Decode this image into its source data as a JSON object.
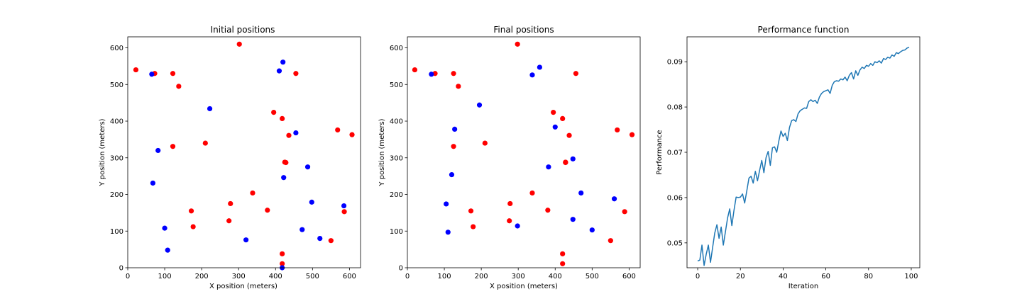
{
  "chart_data": [
    {
      "type": "scatter",
      "title": "Initial positions",
      "xlabel": "X position (meters)",
      "ylabel": "Y position (meters)",
      "xlim": [
        0,
        630
      ],
      "ylim": [
        0,
        630
      ],
      "xticks": [
        0,
        100,
        200,
        300,
        400,
        500,
        600
      ],
      "yticks": [
        0,
        100,
        200,
        300,
        400,
        500,
        600
      ],
      "grid": false,
      "series": [
        {
          "color": "#ff0000",
          "x": [
            22,
            73,
            122,
            138,
            302,
            395,
            418,
            425,
            436,
            455,
            568,
            607,
            122,
            210,
            428,
            338,
            278,
            172,
            378,
            586,
            177,
            274,
            418,
            418,
            550
          ],
          "y": [
            540,
            530,
            530,
            495,
            610,
            424,
            407,
            288,
            361,
            530,
            376,
            363,
            331,
            340,
            287,
            204,
            175,
            155,
            157,
            153,
            112,
            128,
            38,
            11,
            74
          ]
        },
        {
          "color": "#0000ff",
          "x": [
            65,
            420,
            410,
            222,
            455,
            82,
            487,
            422,
            68,
            498,
            585,
            100,
            472,
            520,
            108,
            320,
            418
          ],
          "y": [
            528,
            561,
            537,
            434,
            368,
            320,
            275,
            246,
            231,
            179,
            169,
            108,
            104,
            80,
            48,
            76,
            0
          ]
        }
      ]
    },
    {
      "type": "scatter",
      "title": "Final positions",
      "xlabel": "X position (meters)",
      "ylabel": "Y position (meters)",
      "xlim": [
        0,
        630
      ],
      "ylim": [
        0,
        630
      ],
      "xticks": [
        0,
        100,
        200,
        300,
        400,
        500,
        600
      ],
      "yticks": [
        0,
        100,
        200,
        300,
        400,
        500,
        600
      ],
      "grid": false,
      "series": [
        {
          "color": "#ff0000",
          "x": [
            20,
            75,
            125,
            138,
            298,
            395,
            420,
            428,
            438,
            456,
            568,
            608,
            125,
            210,
            428,
            338,
            278,
            172,
            380,
            588,
            178,
            276,
            420,
            420,
            550
          ],
          "y": [
            540,
            530,
            530,
            495,
            610,
            424,
            407,
            288,
            361,
            530,
            376,
            363,
            331,
            340,
            287,
            204,
            175,
            155,
            157,
            153,
            112,
            128,
            38,
            11,
            74
          ]
        },
        {
          "color": "#0000ff",
          "x": [
            65,
            358,
            338,
            195,
            400,
            128,
            382,
            448,
            120,
            470,
            560,
            105,
            448,
            500,
            110,
            298
          ],
          "y": [
            528,
            547,
            526,
            444,
            384,
            378,
            275,
            297,
            254,
            204,
            188,
            174,
            132,
            103,
            97,
            114
          ]
        }
      ]
    },
    {
      "type": "line",
      "title": "Performance function",
      "xlabel": "Iteration",
      "ylabel": "Performance",
      "xlim": [
        -5,
        104
      ],
      "ylim": [
        0.0445,
        0.0955
      ],
      "xticks": [
        0,
        20,
        40,
        60,
        80,
        100
      ],
      "yticks": [
        0.05,
        0.06,
        0.07,
        0.08,
        0.09
      ],
      "grid": false,
      "series": [
        {
          "color": "#1f77b4",
          "x": [
            0,
            1,
            2,
            3,
            4,
            5,
            6,
            7,
            8,
            9,
            10,
            11,
            12,
            13,
            14,
            15,
            16,
            17,
            18,
            19,
            20,
            21,
            22,
            23,
            24,
            25,
            26,
            27,
            28,
            29,
            30,
            31,
            32,
            33,
            34,
            35,
            36,
            37,
            38,
            39,
            40,
            41,
            42,
            43,
            44,
            45,
            46,
            47,
            48,
            49,
            50,
            51,
            52,
            53,
            54,
            55,
            56,
            57,
            58,
            59,
            60,
            61,
            62,
            63,
            64,
            65,
            66,
            67,
            68,
            69,
            70,
            71,
            72,
            73,
            74,
            75,
            76,
            77,
            78,
            79,
            80,
            81,
            82,
            83,
            84,
            85,
            86,
            87,
            88,
            89,
            90,
            91,
            92,
            93,
            94,
            95,
            96,
            97,
            98,
            99
          ],
          "y": [
            0.046,
            0.0462,
            0.0495,
            0.045,
            0.0475,
            0.0495,
            0.0457,
            0.049,
            0.0522,
            0.054,
            0.051,
            0.0535,
            0.0495,
            0.0525,
            0.0555,
            0.0575,
            0.0538,
            0.0572,
            0.0601,
            0.06,
            0.0601,
            0.0608,
            0.0588,
            0.0615,
            0.0643,
            0.0647,
            0.0632,
            0.0658,
            0.0637,
            0.066,
            0.0682,
            0.0655,
            0.0688,
            0.0702,
            0.0671,
            0.071,
            0.0712,
            0.07,
            0.0725,
            0.0747,
            0.0735,
            0.0742,
            0.0726,
            0.0755,
            0.077,
            0.0772,
            0.0768,
            0.0785,
            0.0792,
            0.0795,
            0.0798,
            0.0797,
            0.0812,
            0.0816,
            0.0812,
            0.0815,
            0.0808,
            0.0822,
            0.083,
            0.0834,
            0.0836,
            0.0838,
            0.083,
            0.0848,
            0.0856,
            0.0858,
            0.0857,
            0.0862,
            0.086,
            0.0866,
            0.0858,
            0.087,
            0.0876,
            0.0862,
            0.088,
            0.087,
            0.0882,
            0.0888,
            0.0885,
            0.0892,
            0.089,
            0.0896,
            0.0892,
            0.09,
            0.0898,
            0.0902,
            0.0897,
            0.0907,
            0.0905,
            0.091,
            0.0908,
            0.0915,
            0.0912,
            0.092,
            0.0918,
            0.0922,
            0.0925,
            0.0926,
            0.093,
            0.0932
          ]
        }
      ]
    }
  ]
}
